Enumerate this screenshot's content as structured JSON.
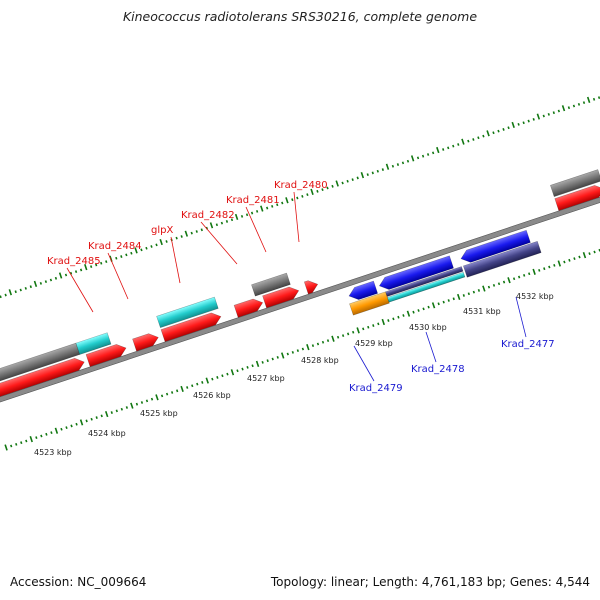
{
  "title": "Kineococcus radiotolerans SRS30216, complete genome",
  "footer": {
    "accession": "Accession: NC_009664",
    "summary": "Topology: linear; Length: 4,761,183 bp; Genes: 4,544"
  },
  "colors": {
    "cds_forward": "#ff1a1a",
    "cds_reverse": "#1a1aee",
    "gene": "#777777",
    "other_feature": "#22cccc",
    "pseudo": "#ff9900",
    "reverse_alt": "#444488",
    "tick": "#117711",
    "backbone": "#888888",
    "label_forward": "#e01010",
    "label_reverse": "#1a1ad0"
  },
  "scale_labels": [
    "4523 kbp",
    "4524 kbp",
    "4525 kbp",
    "4526 kbp",
    "4527 kbp",
    "4528 kbp",
    "4529 kbp",
    "4530 kbp",
    "4531 kbp",
    "4532 kbp"
  ],
  "gene_labels_forward": [
    "Krad_2485",
    "Krad_2484",
    "glpX",
    "Krad_2482",
    "Krad_2481",
    "Krad_2480"
  ],
  "gene_labels_reverse": [
    "Krad_2479",
    "Krad_2478",
    "Krad_2477"
  ]
}
